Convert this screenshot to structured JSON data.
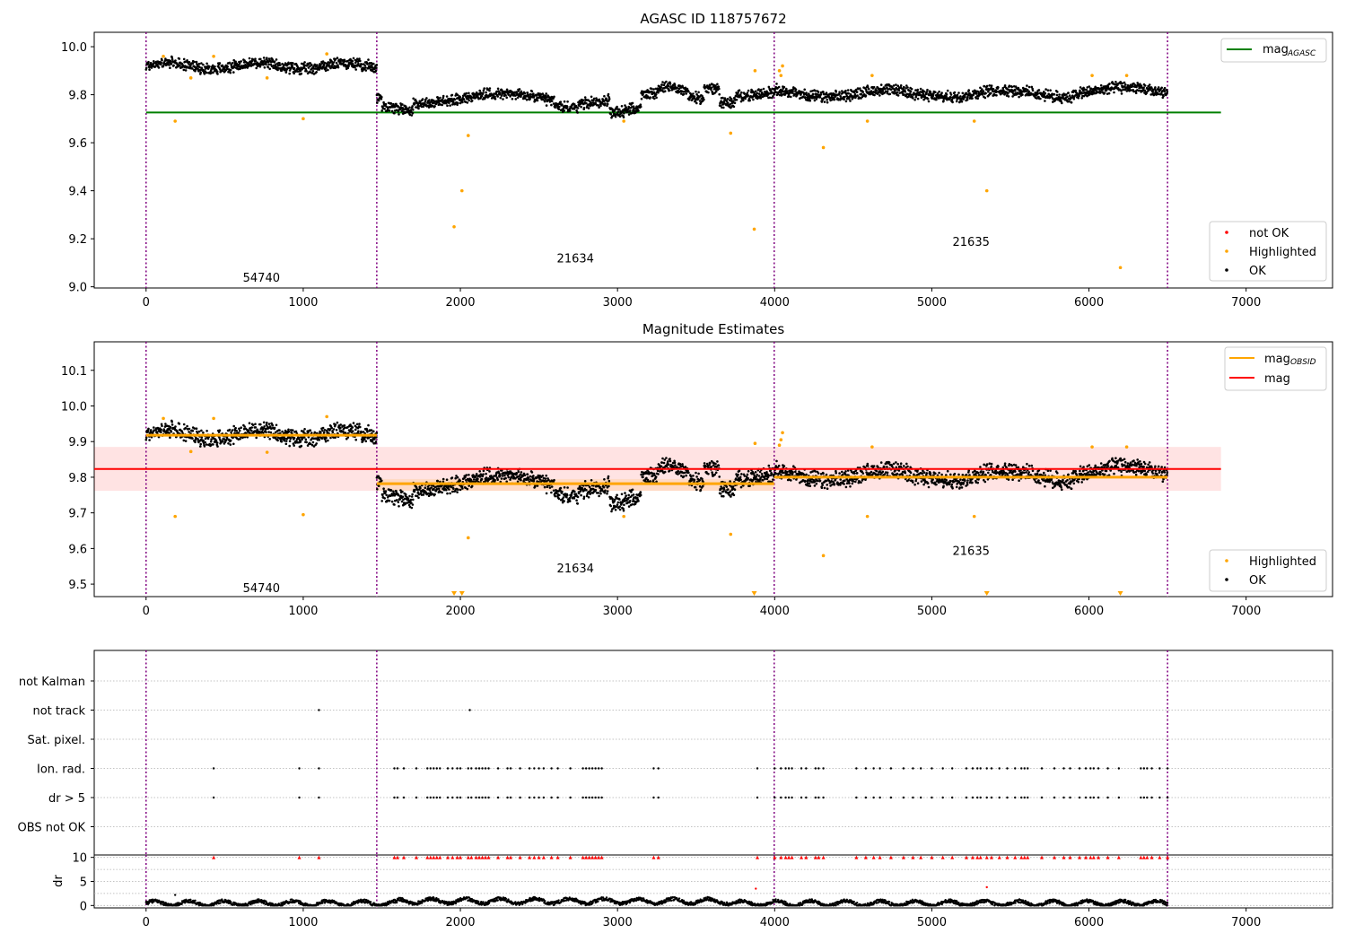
{
  "chart_data": [
    {
      "id": "agasc",
      "type": "scatter",
      "title": "AGASC ID 118757672",
      "xlim": [
        -330,
        7550
      ],
      "ylim": [
        8.995,
        10.06
      ],
      "xticks": [
        0,
        1000,
        2000,
        3000,
        4000,
        5000,
        6000,
        7000
      ],
      "yticks": [
        9.0,
        9.2,
        9.4,
        9.6,
        9.8,
        10.0
      ],
      "ytick_labels": [
        "9.0",
        "9.2",
        "9.4",
        "9.6",
        "9.8",
        "10.0"
      ],
      "obs_boundaries": [
        0,
        1468,
        3997,
        6500
      ],
      "obs_labels": [
        {
          "text": "54740",
          "x": 734,
          "y": 9.04
        },
        {
          "text": "21634",
          "x": 2732,
          "y": 9.12
        },
        {
          "text": "21635",
          "x": 5250,
          "y": 9.19
        }
      ],
      "hlines": [
        {
          "name": "mag",
          "sub": "AGASC",
          "y": 9.726,
          "x0": 0,
          "x1": 6840,
          "color": "#008000"
        }
      ],
      "bands": [],
      "mag_segments": [],
      "show_ok_segments": true,
      "highlighted": [
        [
          110,
          9.96
        ],
        [
          185,
          9.69
        ],
        [
          285,
          9.87
        ],
        [
          430,
          9.96
        ],
        [
          770,
          9.87
        ],
        [
          1000,
          9.7
        ],
        [
          1150,
          9.97
        ],
        [
          2010,
          9.4
        ],
        [
          1960,
          9.25
        ],
        [
          2050,
          9.63
        ],
        [
          3040,
          9.69
        ],
        [
          3720,
          9.64
        ],
        [
          3870,
          9.24
        ],
        [
          3875,
          9.9
        ],
        [
          4030,
          9.9
        ],
        [
          4050,
          9.92
        ],
        [
          4040,
          9.88
        ],
        [
          4310,
          9.58
        ],
        [
          4590,
          9.69
        ],
        [
          4620,
          9.88
        ],
        [
          5270,
          9.69
        ],
        [
          5350,
          9.4
        ],
        [
          6020,
          9.88
        ],
        [
          6200,
          9.08
        ],
        [
          6240,
          9.88
        ]
      ],
      "not_ok": [],
      "legend_top": [
        {
          "label": "mag",
          "sub": "AGASC",
          "color": "#008000",
          "kind": "line"
        }
      ],
      "legend_bottom": [
        {
          "label": "not OK",
          "color": "#ff0000",
          "kind": "dot"
        },
        {
          "label": "Highlighted",
          "color": "#ffa500",
          "kind": "dot"
        },
        {
          "label": "OK",
          "color": "#000000",
          "kind": "dot"
        }
      ]
    },
    {
      "id": "estimates",
      "type": "scatter",
      "title": "Magnitude Estimates",
      "xlim": [
        -330,
        7550
      ],
      "ylim": [
        9.465,
        10.18
      ],
      "xticks": [
        0,
        1000,
        2000,
        3000,
        4000,
        5000,
        6000,
        7000
      ],
      "yticks": [
        9.5,
        9.6,
        9.7,
        9.8,
        9.9,
        10.0,
        10.1
      ],
      "ytick_labels": [
        "9.5",
        "9.6",
        "9.7",
        "9.8",
        "9.9",
        "10.0",
        "10.1"
      ],
      "obs_boundaries": [
        0,
        1468,
        3997,
        6500
      ],
      "obs_labels": [
        {
          "text": "54740",
          "x": 734,
          "y": 9.49
        },
        {
          "text": "21634",
          "x": 2732,
          "y": 9.545
        },
        {
          "text": "21635",
          "x": 5250,
          "y": 9.595
        }
      ],
      "hlines": [
        {
          "name": "mag",
          "sub": "",
          "y": 9.823,
          "x0": -330,
          "x1": 6840,
          "color": "#ff0000"
        }
      ],
      "bands": [
        {
          "x0": -330,
          "x1": 6840,
          "y0": 9.762,
          "y1": 9.885,
          "color": "#ff0000",
          "opacity": 0.11
        },
        {
          "x0": 1468,
          "x1": 3997,
          "y0": 9.762,
          "y1": 9.795,
          "color": "#ffa500",
          "opacity": 0.13
        }
      ],
      "mag_segments": [
        {
          "x0": 0,
          "x1": 1468,
          "y": 9.918,
          "color": "#ffa500"
        },
        {
          "x0": 1468,
          "x1": 3997,
          "y": 9.782,
          "color": "#ffa500"
        },
        {
          "x0": 3997,
          "x1": 6500,
          "y": 9.8,
          "color": "#ffa500"
        }
      ],
      "show_ok_segments": true,
      "highlighted": [
        [
          110,
          9.965
        ],
        [
          185,
          9.69
        ],
        [
          285,
          9.872
        ],
        [
          430,
          9.965
        ],
        [
          770,
          9.87
        ],
        [
          1000,
          9.695
        ],
        [
          1150,
          9.97
        ],
        [
          2050,
          9.63
        ],
        [
          3040,
          9.69
        ],
        [
          3720,
          9.64
        ],
        [
          3875,
          9.895
        ],
        [
          4030,
          9.89
        ],
        [
          4050,
          9.925
        ],
        [
          4040,
          9.905
        ],
        [
          4310,
          9.58
        ],
        [
          4590,
          9.69
        ],
        [
          4620,
          9.885
        ],
        [
          5270,
          9.69
        ],
        [
          6020,
          9.885
        ],
        [
          6240,
          9.885
        ]
      ],
      "clipped_low": [
        1960,
        2010,
        3870,
        5350,
        6200
      ],
      "not_ok": [],
      "legend_top": [
        {
          "label": "mag",
          "sub": "OBSID",
          "color": "#ffa500",
          "kind": "line"
        },
        {
          "label": "mag",
          "sub": "",
          "color": "#ff0000",
          "kind": "line"
        }
      ],
      "legend_bottom": [
        {
          "label": "Highlighted",
          "color": "#ffa500",
          "kind": "dot"
        },
        {
          "label": "OK",
          "color": "#000000",
          "kind": "dot"
        }
      ]
    },
    {
      "id": "flags",
      "type": "scatter",
      "title": "",
      "xlim": [
        -330,
        7550
      ],
      "categories": [
        "not Kalman",
        "not track",
        "Sat. pixel.",
        "Ion. rad.",
        "dr > 5",
        "OBS not OK"
      ],
      "obs_boundaries": [
        0,
        1468,
        3997,
        6500
      ],
      "not_track": [
        1100,
        2060
      ],
      "ion_rad": [
        430,
        975,
        1100,
        1580,
        1600,
        1640,
        1720,
        1790,
        1810,
        1830,
        1850,
        1870,
        1920,
        1950,
        1980,
        2000,
        2050,
        2070,
        2100,
        2120,
        2140,
        2160,
        2180,
        2240,
        2300,
        2320,
        2380,
        2440,
        2470,
        2500,
        2530,
        2580,
        2620,
        2700,
        2780,
        2800,
        2820,
        2840,
        2860,
        2880,
        2900,
        3230,
        3260,
        3890,
        4000,
        4040,
        4070,
        4090,
        4110,
        4170,
        4200,
        4260,
        4280,
        4310,
        4520,
        4580,
        4630,
        4670,
        4740,
        4820,
        4880,
        4930,
        5000,
        5070,
        5130,
        5220,
        5260,
        5290,
        5310,
        5350,
        5380,
        5430,
        5480,
        5530,
        5570,
        5590,
        5610,
        5700,
        5780,
        5840,
        5880,
        5940,
        5980,
        6010,
        6030,
        6060,
        6120,
        6190,
        6330,
        6350,
        6370,
        6400,
        6450,
        6500
      ],
      "dr_over_5": [
        430,
        975,
        1100,
        1580,
        1600,
        1640,
        1720,
        1790,
        1810,
        1830,
        1850,
        1870,
        1920,
        1950,
        1980,
        2000,
        2050,
        2070,
        2100,
        2120,
        2140,
        2160,
        2180,
        2240,
        2300,
        2320,
        2380,
        2440,
        2470,
        2500,
        2530,
        2580,
        2620,
        2700,
        2780,
        2800,
        2820,
        2840,
        2860,
        2880,
        2900,
        3230,
        3260,
        3890,
        4000,
        4040,
        4070,
        4090,
        4110,
        4170,
        4200,
        4260,
        4280,
        4310,
        4520,
        4580,
        4630,
        4670,
        4740,
        4820,
        4880,
        4930,
        5000,
        5070,
        5130,
        5220,
        5260,
        5290,
        5310,
        5350,
        5380,
        5430,
        5480,
        5530,
        5570,
        5590,
        5610,
        5700,
        5780,
        5840,
        5880,
        5940,
        5980,
        6010,
        6030,
        6060,
        6120,
        6190,
        6330,
        6350,
        6370,
        6400,
        6450,
        6500
      ]
    },
    {
      "id": "dr",
      "type": "scatter",
      "title": "",
      "ylabel": "dr",
      "xlim": [
        -330,
        7550
      ],
      "ylim": [
        -0.5,
        10.5
      ],
      "xticks": [
        0,
        1000,
        2000,
        3000,
        4000,
        5000,
        6000,
        7000
      ],
      "yticks": [
        0,
        5,
        10
      ],
      "ytick_labels": [
        "0",
        "5",
        "10"
      ],
      "obs_boundaries": [
        0,
        1468,
        3997,
        6500
      ],
      "dr_spikes": [
        [
          185,
          2.2
        ],
        [
          3880,
          3.5
        ],
        [
          5350,
          3.8
        ]
      ]
    }
  ]
}
